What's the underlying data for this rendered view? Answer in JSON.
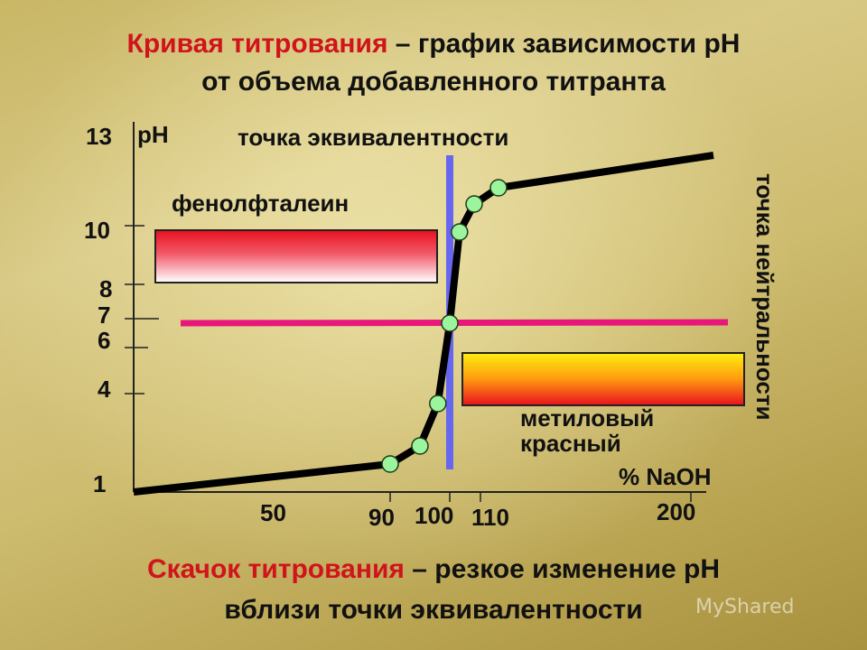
{
  "header": {
    "line1_red": "Кривая титрования",
    "line1_rest": " – график зависимости pH",
    "line2": "от объема добавленного титранта"
  },
  "footer": {
    "line1_red": "Скачок титрования",
    "line1_rest": " – резкое изменение pH",
    "line2": "вблизи точки эквивалентности"
  },
  "watermark": "MyShared",
  "chart_data": {
    "type": "line",
    "xlabel": "% NaOH",
    "ylabel": "pH",
    "x_ticks": [
      "50",
      "90",
      "100",
      "110",
      "200"
    ],
    "y_ticks": [
      "1",
      "4",
      "6",
      "7",
      "8",
      "10",
      "13"
    ],
    "series": [
      {
        "values": [
          [
            0,
            1
          ],
          [
            90,
            1.5
          ],
          [
            95,
            2.2
          ],
          [
            98,
            3.7
          ],
          [
            100,
            7
          ],
          [
            102,
            10
          ],
          [
            105,
            11
          ],
          [
            110,
            12
          ],
          [
            200,
            13
          ]
        ]
      }
    ],
    "marked_points": [
      [
        90,
        1.5
      ],
      [
        95,
        2.2
      ],
      [
        98,
        3.7
      ],
      [
        100,
        7
      ],
      [
        102,
        10
      ],
      [
        105,
        11
      ],
      [
        110,
        12
      ]
    ],
    "annotations": {
      "equivalence_point": "точка эквивалентности",
      "neutrality_point": "точка нейтральности",
      "phenolphthalein": "фенолфталеин",
      "methyl_red_line1": "метиловый",
      "methyl_red_line2": "красный"
    },
    "indicator_ranges": [
      {
        "name": "фенолфталеин",
        "ph_from": 8,
        "ph_to": 10,
        "color": "#e8101e"
      },
      {
        "name": "метиловый красный",
        "ph_from": 4,
        "ph_to": 6,
        "color": "#ff8800"
      }
    ],
    "neutral_line_ph": 7,
    "colors": {
      "curve": "#000000",
      "equivalence_line": "#6666ee",
      "neutral_line": "#e8187a",
      "points": "#9cf59c"
    }
  }
}
